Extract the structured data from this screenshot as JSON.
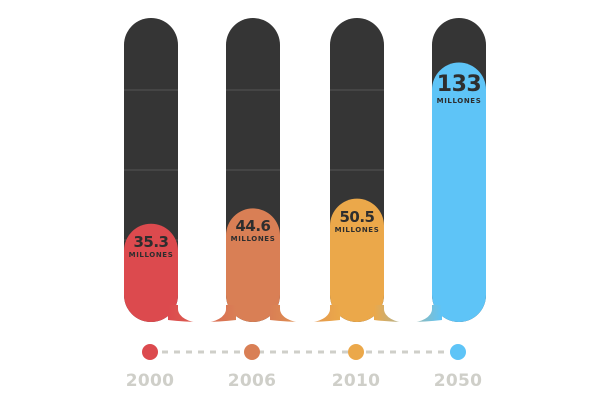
{
  "colors": {
    "track": "#353535",
    "grid": "#555555",
    "connector": "#ffffff",
    "timeline": "#cfcfc9",
    "year_text": "#cfcfc9",
    "label_text": "#2e2e2e",
    "bars": [
      "#dc4a4e",
      "#d97f55",
      "#eba84a",
      "#5ec4f7"
    ]
  },
  "chart_data": {
    "type": "bar",
    "categories": [
      "2000",
      "2006",
      "2010",
      "2050"
    ],
    "values": [
      35.3,
      44.6,
      50.5,
      133
    ],
    "value_labels": [
      "35.3",
      "44.6",
      "50.5",
      "133"
    ],
    "unit": "MILLONES",
    "ylim": [
      0,
      160
    ],
    "grid": true,
    "legend": "none",
    "title": "",
    "xlabel": "",
    "ylabel": ""
  }
}
